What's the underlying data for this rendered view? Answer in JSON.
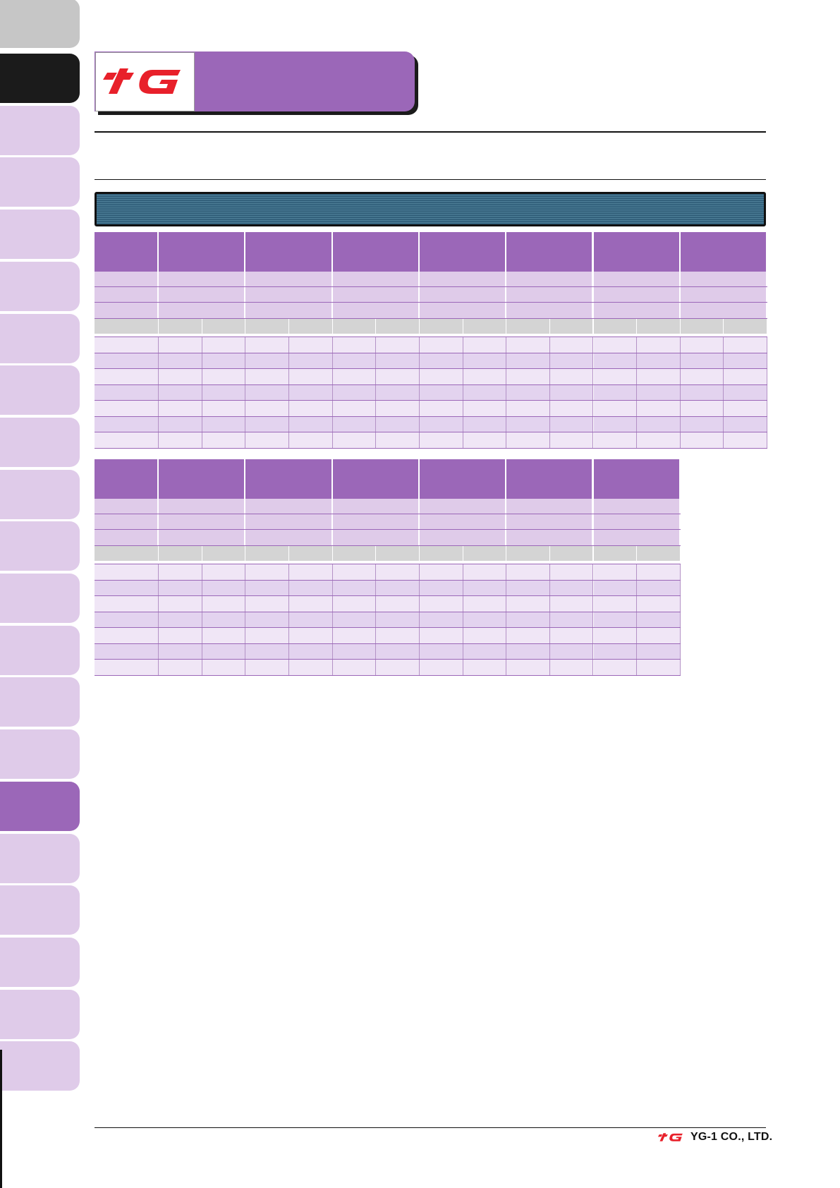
{
  "brand": {
    "logo_text": "YG",
    "company": "YG-1 CO., LTD.",
    "accent_color": "#9b67b8",
    "logo_color": "#e8202a"
  },
  "side_tabs": [
    "gray",
    "black",
    "light",
    "light",
    "light",
    "light",
    "light",
    "light",
    "light",
    "light",
    "light",
    "light",
    "light",
    "light",
    "light",
    "purple",
    "light",
    "light",
    "light",
    "light",
    "light"
  ],
  "table1": {
    "group_columns": 7,
    "band_rows": 3,
    "data_rows": 7
  },
  "table2": {
    "group_columns": 6,
    "band_rows": 3,
    "data_rows": 7
  }
}
